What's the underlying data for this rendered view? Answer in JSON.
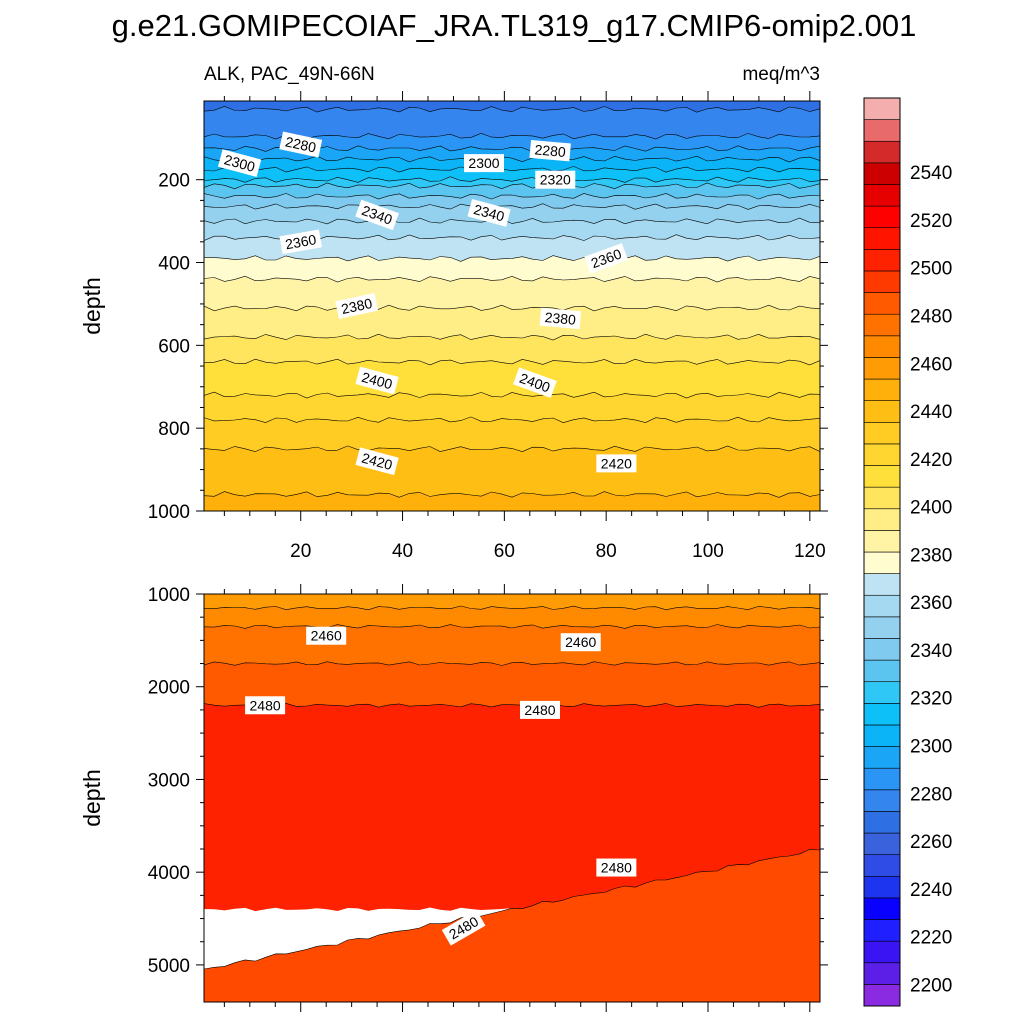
{
  "chart_data": {
    "type": "heatmap",
    "title": "g.e21.GOMIPECOIAF_JRA.TL319_g17.CMIP6-omip2.001",
    "variable_label": "ALK, PAC_49N-66N",
    "units_label": "meq/m^3",
    "ylabel": "depth",
    "x_range": [
      1,
      122
    ],
    "x_ticks": [
      20,
      40,
      60,
      80,
      100,
      120
    ],
    "colors": {
      "background": "#ffffff",
      "contour_line": "#000000"
    },
    "panels": [
      {
        "name": "upper",
        "depth_range": [
          10,
          1000
        ],
        "y_ticks": [
          200,
          400,
          600,
          800,
          1000
        ],
        "bands": [
          {
            "from": 0,
            "to": 30,
            "value": 2260,
            "color": "#2f6fe4"
          },
          {
            "from": 30,
            "to": 95,
            "value": 2270,
            "color": "#3585ef"
          },
          {
            "from": 95,
            "to": 125,
            "value": 2280,
            "color": "#2a95f5"
          },
          {
            "from": 125,
            "to": 150,
            "value": 2290,
            "color": "#1aa5f7"
          },
          {
            "from": 150,
            "to": 175,
            "value": 2300,
            "color": "#0ab4f7"
          },
          {
            "from": 175,
            "to": 200,
            "value": 2310,
            "color": "#0ec0f8"
          },
          {
            "from": 200,
            "to": 215,
            "value": 2320,
            "color": "#2fc7f5"
          },
          {
            "from": 215,
            "to": 240,
            "value": 2330,
            "color": "#5cc5ef"
          },
          {
            "from": 240,
            "to": 265,
            "value": 2340,
            "color": "#7fcaee"
          },
          {
            "from": 265,
            "to": 300,
            "value": 2345,
            "color": "#94d1ef"
          },
          {
            "from": 300,
            "to": 340,
            "value": 2350,
            "color": "#a5d9f1"
          },
          {
            "from": 340,
            "to": 390,
            "value": 2360,
            "color": "#bfe3f3"
          },
          {
            "from": 390,
            "to": 440,
            "value": 2370,
            "color": "#fffdd0"
          },
          {
            "from": 440,
            "to": 510,
            "value": 2380,
            "color": "#fff4a6"
          },
          {
            "from": 510,
            "to": 580,
            "value": 2385,
            "color": "#ffee85"
          },
          {
            "from": 580,
            "to": 640,
            "value": 2390,
            "color": "#ffe55e"
          },
          {
            "from": 640,
            "to": 720,
            "value": 2400,
            "color": "#ffdf3a"
          },
          {
            "from": 720,
            "to": 780,
            "value": 2405,
            "color": "#ffd530"
          },
          {
            "from": 780,
            "to": 850,
            "value": 2410,
            "color": "#ffcc24"
          },
          {
            "from": 850,
            "to": 960,
            "value": 2420,
            "color": "#ffbe14"
          },
          {
            "from": 960,
            "to": 1000,
            "value": 2430,
            "color": "#ffb00a"
          }
        ],
        "contour_labels": [
          {
            "text": "2280",
            "x": 20,
            "depth": 115,
            "angle": 12
          },
          {
            "text": "2300",
            "x": 8,
            "depth": 160,
            "angle": 15
          },
          {
            "text": "2300",
            "x": 56,
            "depth": 160,
            "angle": 0
          },
          {
            "text": "2280",
            "x": 69,
            "depth": 130,
            "angle": 5
          },
          {
            "text": "2320",
            "x": 70,
            "depth": 200,
            "angle": 0
          },
          {
            "text": "2340",
            "x": 35,
            "depth": 285,
            "angle": 20
          },
          {
            "text": "2340",
            "x": 57,
            "depth": 280,
            "angle": 15
          },
          {
            "text": "2360",
            "x": 20,
            "depth": 350,
            "angle": -10
          },
          {
            "text": "2360",
            "x": 80,
            "depth": 390,
            "angle": -20
          },
          {
            "text": "2380",
            "x": 31,
            "depth": 505,
            "angle": -12
          },
          {
            "text": "2380",
            "x": 71,
            "depth": 535,
            "angle": 5
          },
          {
            "text": "2400",
            "x": 35,
            "depth": 685,
            "angle": 15
          },
          {
            "text": "2400",
            "x": 66,
            "depth": 690,
            "angle": 20
          },
          {
            "text": "2420",
            "x": 35,
            "depth": 880,
            "angle": 15
          },
          {
            "text": "2420",
            "x": 82,
            "depth": 885,
            "angle": 0
          }
        ]
      },
      {
        "name": "lower",
        "depth_range": [
          1000,
          5400
        ],
        "y_ticks": [
          1000,
          2000,
          3000,
          4000,
          5000
        ],
        "bands": [
          {
            "from": 1000,
            "to": 1150,
            "value": 2440,
            "color": "#ff9c05"
          },
          {
            "from": 1150,
            "to": 1350,
            "value": 2450,
            "color": "#ff8a00"
          },
          {
            "from": 1350,
            "to": 1750,
            "value": 2460,
            "color": "#ff7200"
          },
          {
            "from": 1750,
            "to": 2200,
            "value": 2470,
            "color": "#ff5a00"
          },
          {
            "from": 2200,
            "to": 4400,
            "value": 2480,
            "color": "#ff2200"
          },
          {
            "from": 4400,
            "to": 5400,
            "value": 2490,
            "color": "#ff4a00"
          }
        ],
        "contour_labels": [
          {
            "text": "2460",
            "x": 25,
            "depth": 1450,
            "angle": 0
          },
          {
            "text": "2460",
            "x": 75,
            "depth": 1520,
            "angle": 0
          },
          {
            "text": "2480",
            "x": 13,
            "depth": 2200,
            "angle": 0
          },
          {
            "text": "2480",
            "x": 67,
            "depth": 2250,
            "angle": 0
          },
          {
            "text": "2480",
            "x": 82,
            "depth": 3950,
            "angle": 0
          },
          {
            "text": "2480",
            "x": 52,
            "depth": 4600,
            "angle": -30
          }
        ]
      }
    ],
    "colorbar": {
      "colors_bottom_to_top": [
        "#8a2be2",
        "#5b1fe8",
        "#3a14f2",
        "#1f1fff",
        "#0a00ff",
        "#1e35f0",
        "#2f4de6",
        "#3a62dd",
        "#2f6fe4",
        "#3585ef",
        "#2a95f5",
        "#1aa5f7",
        "#0ab4f7",
        "#0ec0f8",
        "#2fc7f5",
        "#5cc5ef",
        "#7fcaee",
        "#94d1ef",
        "#a5d9f1",
        "#bfe3f3",
        "#fffdd0",
        "#fff4a6",
        "#ffee85",
        "#ffe55e",
        "#ffdf3a",
        "#ffd530",
        "#ffcc24",
        "#ffbe14",
        "#ffb00a",
        "#ff9c05",
        "#ff8a00",
        "#ff7200",
        "#ff5a00",
        "#ff3a00",
        "#ff2200",
        "#ff1400",
        "#ff0000",
        "#e60000",
        "#cc0000",
        "#d42a2a",
        "#e86a6a",
        "#f4aeae"
      ],
      "labels": [
        "2200",
        "2220",
        "2240",
        "2260",
        "2280",
        "2300",
        "2320",
        "2340",
        "2360",
        "2380",
        "2400",
        "2420",
        "2440",
        "2460",
        "2480",
        "2500",
        "2520",
        "2540"
      ]
    }
  }
}
